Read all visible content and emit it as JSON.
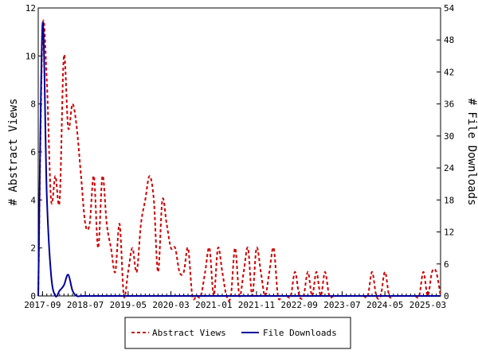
{
  "chart_data": {
    "type": "line",
    "xlabel": "",
    "x_ticks": [
      "2017-09",
      "2018-07",
      "2019-05",
      "2020-03",
      "2021-01",
      "2021-11",
      "2022-09",
      "2023-07",
      "2024-05",
      "2025-03"
    ],
    "y_left": {
      "label": "# Abstract Views",
      "range": [
        0,
        12
      ],
      "ticks": [
        0,
        2,
        4,
        6,
        8,
        10,
        12
      ]
    },
    "y_right": {
      "label": "# File Downloads",
      "range": [
        0,
        54
      ],
      "ticks": [
        0,
        6,
        12,
        18,
        24,
        30,
        36,
        42,
        48,
        54
      ]
    },
    "grid": false,
    "legend_position": "bottom-center",
    "series": [
      {
        "name": "Abstract Views",
        "axis": "left",
        "color": "#cc0000",
        "style": "dashed",
        "points": [
          [
            "2017-08",
            0
          ],
          [
            "2017-09",
            11
          ],
          [
            "2017-10",
            9
          ],
          [
            "2017-11",
            4
          ],
          [
            "2017-12",
            5
          ],
          [
            "2018-01",
            4
          ],
          [
            "2018-02",
            10
          ],
          [
            "2018-03",
            7
          ],
          [
            "2018-04",
            8
          ],
          [
            "2018-05",
            7
          ],
          [
            "2018-06",
            5
          ],
          [
            "2018-07",
            3
          ],
          [
            "2018-08",
            3
          ],
          [
            "2018-09",
            5
          ],
          [
            "2018-10",
            2
          ],
          [
            "2018-11",
            5
          ],
          [
            "2018-12",
            3
          ],
          [
            "2019-01",
            2
          ],
          [
            "2019-02",
            1
          ],
          [
            "2019-03",
            3
          ],
          [
            "2019-04",
            0
          ],
          [
            "2019-05",
            1
          ],
          [
            "2019-06",
            2
          ],
          [
            "2019-07",
            1
          ],
          [
            "2019-08",
            3
          ],
          [
            "2019-09",
            4
          ],
          [
            "2019-10",
            5
          ],
          [
            "2019-11",
            4
          ],
          [
            "2019-12",
            1
          ],
          [
            "2020-01",
            4
          ],
          [
            "2020-02",
            3
          ],
          [
            "2020-03",
            2
          ],
          [
            "2020-04",
            2
          ],
          [
            "2020-05",
            1
          ],
          [
            "2020-06",
            1
          ],
          [
            "2020-07",
            2
          ],
          [
            "2020-08",
            0
          ],
          [
            "2020-09",
            0
          ],
          [
            "2020-10",
            0
          ],
          [
            "2020-11",
            1
          ],
          [
            "2020-12",
            2
          ],
          [
            "2021-01",
            0
          ],
          [
            "2021-02",
            2
          ],
          [
            "2021-03",
            1
          ],
          [
            "2021-04",
            0
          ],
          [
            "2021-05",
            0
          ],
          [
            "2021-06",
            2
          ],
          [
            "2021-07",
            0
          ],
          [
            "2021-08",
            1
          ],
          [
            "2021-09",
            2
          ],
          [
            "2021-10",
            0
          ],
          [
            "2021-11",
            2
          ],
          [
            "2021-12",
            1
          ],
          [
            "2022-01",
            0
          ],
          [
            "2022-02",
            1
          ],
          [
            "2022-03",
            2
          ],
          [
            "2022-04",
            0
          ],
          [
            "2022-05",
            0
          ],
          [
            "2022-06",
            0
          ],
          [
            "2022-07",
            0
          ],
          [
            "2022-08",
            1
          ],
          [
            "2022-09",
            0
          ],
          [
            "2022-10",
            0
          ],
          [
            "2022-11",
            1
          ],
          [
            "2022-12",
            0
          ],
          [
            "2023-01",
            1
          ],
          [
            "2023-02",
            0
          ],
          [
            "2023-03",
            1
          ],
          [
            "2023-04",
            0
          ],
          [
            "2023-05",
            0
          ],
          [
            "2023-06",
            0
          ],
          [
            "2023-07",
            0
          ],
          [
            "2023-08",
            0
          ],
          [
            "2023-09",
            0
          ],
          [
            "2023-10",
            0
          ],
          [
            "2023-11",
            0
          ],
          [
            "2023-12",
            0
          ],
          [
            "2024-01",
            0
          ],
          [
            "2024-02",
            1
          ],
          [
            "2024-03",
            0
          ],
          [
            "2024-04",
            0
          ],
          [
            "2024-05",
            1
          ],
          [
            "2024-06",
            0
          ],
          [
            "2024-07",
            0
          ],
          [
            "2024-08",
            0
          ],
          [
            "2024-09",
            0
          ],
          [
            "2024-10",
            0
          ],
          [
            "2024-11",
            0
          ],
          [
            "2024-12",
            0
          ],
          [
            "2025-01",
            0
          ],
          [
            "2025-02",
            1
          ],
          [
            "2025-03",
            0
          ],
          [
            "2025-04",
            1
          ],
          [
            "2025-05",
            1
          ],
          [
            "2025-06",
            0
          ]
        ]
      },
      {
        "name": "File Downloads",
        "axis": "right",
        "color": "#000099",
        "style": "solid",
        "points": [
          [
            "2017-08",
            0
          ],
          [
            "2017-09",
            51
          ],
          [
            "2017-10",
            19
          ],
          [
            "2017-11",
            4
          ],
          [
            "2017-12",
            0
          ],
          [
            "2018-01",
            1
          ],
          [
            "2018-02",
            2
          ],
          [
            "2018-03",
            4
          ],
          [
            "2018-04",
            1
          ],
          [
            "2018-05",
            0
          ],
          [
            "2018-06",
            0
          ],
          [
            "2018-07",
            0
          ],
          [
            "2019-05",
            0
          ],
          [
            "2020-03",
            0
          ],
          [
            "2021-01",
            0
          ],
          [
            "2021-11",
            0
          ],
          [
            "2022-09",
            0
          ],
          [
            "2023-07",
            0
          ],
          [
            "2024-05",
            0
          ],
          [
            "2025-03",
            0
          ],
          [
            "2025-06",
            0
          ]
        ]
      }
    ]
  }
}
